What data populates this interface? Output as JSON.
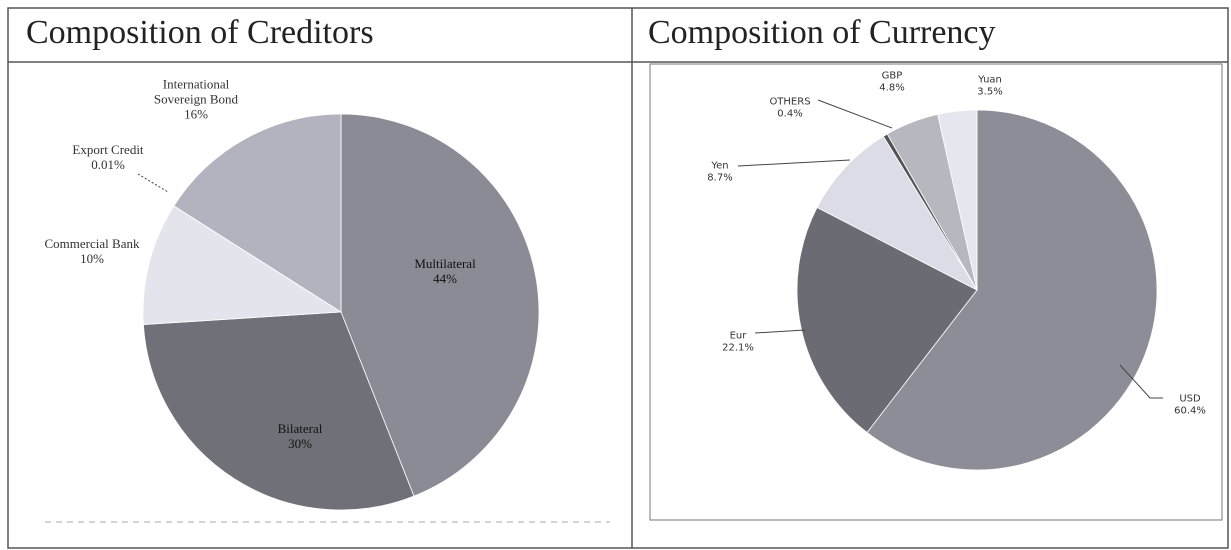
{
  "chart_data": [
    {
      "type": "pie",
      "title": "Composition of Creditors",
      "categories": [
        "Multilateral",
        "Bilateral",
        "Commercial Bank",
        "Export Credit",
        "International Sovereign Bond"
      ],
      "values": [
        44,
        30,
        10,
        0.01,
        16
      ],
      "value_labels": [
        "44%",
        "30%",
        "10%",
        "0.01%",
        "16%"
      ],
      "colors": [
        "#8b8b95",
        "#707079",
        "#e4e4ec",
        "#c8c8d0",
        "#b3b3bf"
      ]
    },
    {
      "type": "pie",
      "title": "Composition of Currency",
      "categories": [
        "USD",
        "Eur",
        "Yen",
        "OTHERS",
        "GBP",
        "Yuan"
      ],
      "values": [
        60.4,
        22.1,
        8.7,
        0.4,
        4.8,
        3.5
      ],
      "value_labels": [
        "60.4%",
        "22.1%",
        "8.7%",
        "0.4%",
        "4.8%",
        "3.5%"
      ],
      "colors": [
        "#8d8d97",
        "#6b6b73",
        "#dcdce6",
        "#555559",
        "#b7b7bf",
        "#e6e6ee"
      ]
    }
  ]
}
